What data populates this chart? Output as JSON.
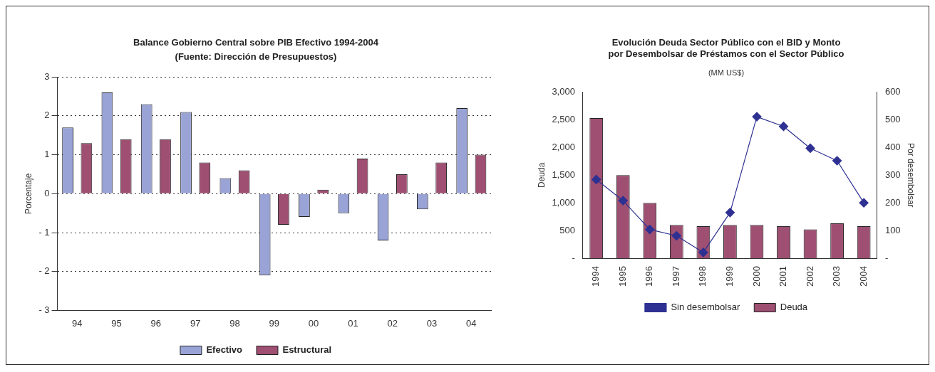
{
  "chart_data": [
    {
      "type": "bar",
      "title": "Balance Gobierno Central sobre PIB Efectivo 1994-2004",
      "subtitle": "(Fuente: Dirección de Presupuestos)",
      "ylabel": "Porcentaje",
      "categories": [
        "94",
        "95",
        "96",
        "97",
        "98",
        "99",
        "00",
        "01",
        "02",
        "03",
        "04"
      ],
      "series": [
        {
          "name": "Efectivo",
          "color": "#99a3d6",
          "values": [
            1.7,
            2.6,
            2.3,
            2.1,
            0.4,
            -2.1,
            -0.6,
            -0.5,
            -1.2,
            -0.4,
            2.2
          ]
        },
        {
          "name": "Estructural",
          "color": "#9e4f72",
          "values": [
            1.3,
            1.4,
            1.4,
            0.8,
            0.6,
            -0.8,
            0.1,
            0.9,
            0.5,
            0.8,
            1.0
          ]
        }
      ],
      "ylim": [
        -3,
        3
      ],
      "yticks": [
        {
          "value": -3,
          "label": "- 3"
        },
        {
          "value": -2,
          "label": "- 2"
        },
        {
          "value": -1,
          "label": "- 1"
        },
        0,
        1,
        2,
        3
      ],
      "grid": "y",
      "legend": "bottom"
    },
    {
      "type": "bar",
      "title": "Evolución Deuda Sector Público con el BID y Monto\npor Desembolsar de Préstamos con el Sector Público",
      "subtitle": "(MM US$)",
      "ylabel": "Deuda",
      "y2label": "Por desembolsar",
      "categories": [
        "1994",
        "1995",
        "1996",
        "1997",
        "1998",
        "1999",
        "2000",
        "2001",
        "2002",
        "2003",
        "2004"
      ],
      "series": [
        {
          "name": "Deuda",
          "color": "#9e4f72",
          "values": [
            2530,
            1500,
            1000,
            600,
            580,
            600,
            600,
            580,
            520,
            630,
            580
          ]
        },
        {
          "name": "Sin desembolsar",
          "type": "line",
          "axis": "y2",
          "marker": "diamond",
          "color": "#2e3192",
          "values": [
            284,
            208,
            104,
            81,
            21,
            165,
            511,
            476,
            397,
            352,
            200
          ]
        }
      ],
      "ylim": [
        0,
        3000
      ],
      "yticks": [
        {
          "value": 0,
          "label": "-"
        },
        500,
        {
          "value": 1000,
          "label": "1,000"
        },
        {
          "value": 1500,
          "label": "1,500"
        },
        {
          "value": 2000,
          "label": "2,000"
        },
        {
          "value": 2500,
          "label": "2,500"
        },
        {
          "value": 3000,
          "label": "3,000"
        }
      ],
      "y2lim": [
        0,
        600
      ],
      "y2ticks": [
        {
          "value": 0,
          "label": "-"
        },
        100,
        200,
        300,
        400,
        500,
        600
      ],
      "grid": false,
      "legend": "bottom"
    }
  ]
}
